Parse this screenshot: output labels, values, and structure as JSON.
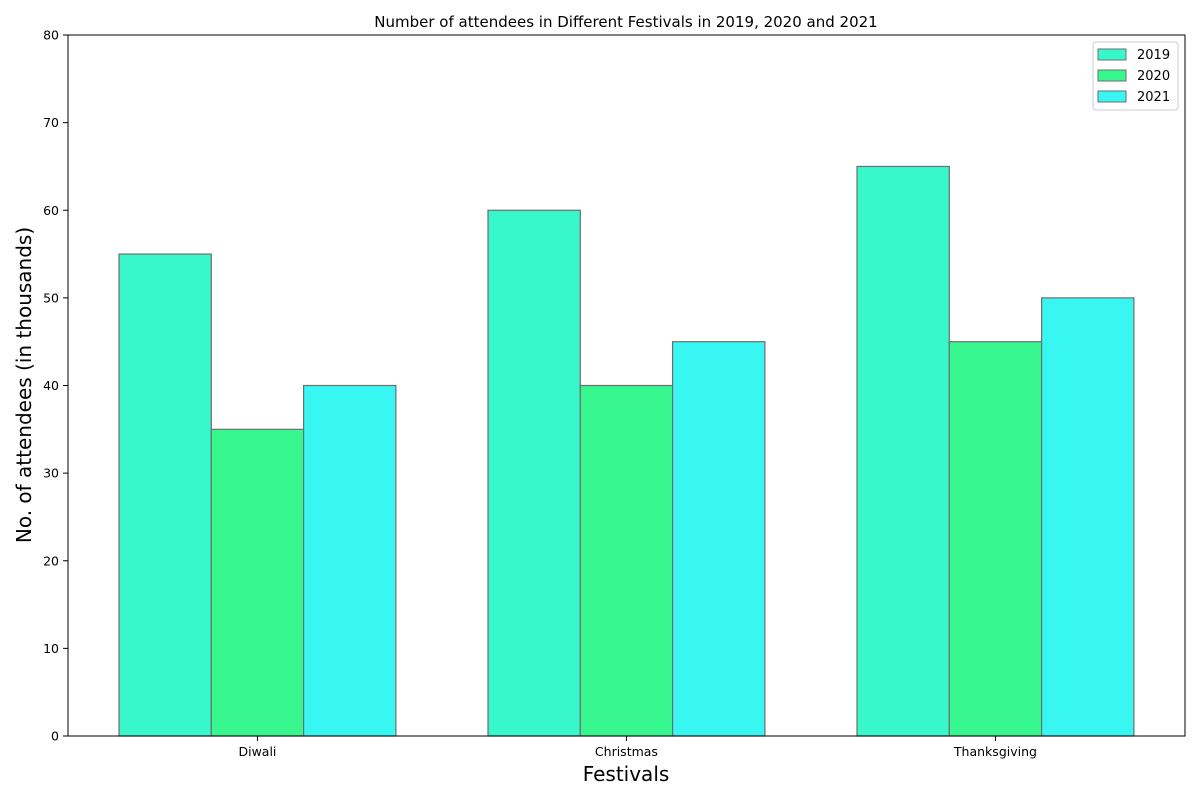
{
  "chart_data": {
    "type": "bar",
    "title": "Number of attendees in Different Festivals in 2019, 2020 and 2021",
    "xlabel": "Festivals",
    "ylabel": "No. of attendees (in thousands)",
    "categories": [
      "Diwali",
      "Christmas",
      "Thanksgiving"
    ],
    "series": [
      {
        "name": "2019",
        "values": [
          55,
          60,
          65
        ],
        "color": "#38f7cb"
      },
      {
        "name": "2020",
        "values": [
          35,
          40,
          45
        ],
        "color": "#38f78f"
      },
      {
        "name": "2021",
        "values": [
          40,
          45,
          50
        ],
        "color": "#38f7f3"
      }
    ],
    "ylim": [
      0,
      80
    ],
    "yticks": [
      0,
      10,
      20,
      30,
      40,
      50,
      60,
      70,
      80
    ],
    "bar_edge_color": "#6e6e6e",
    "grid": false,
    "legend_position": "top-right"
  }
}
